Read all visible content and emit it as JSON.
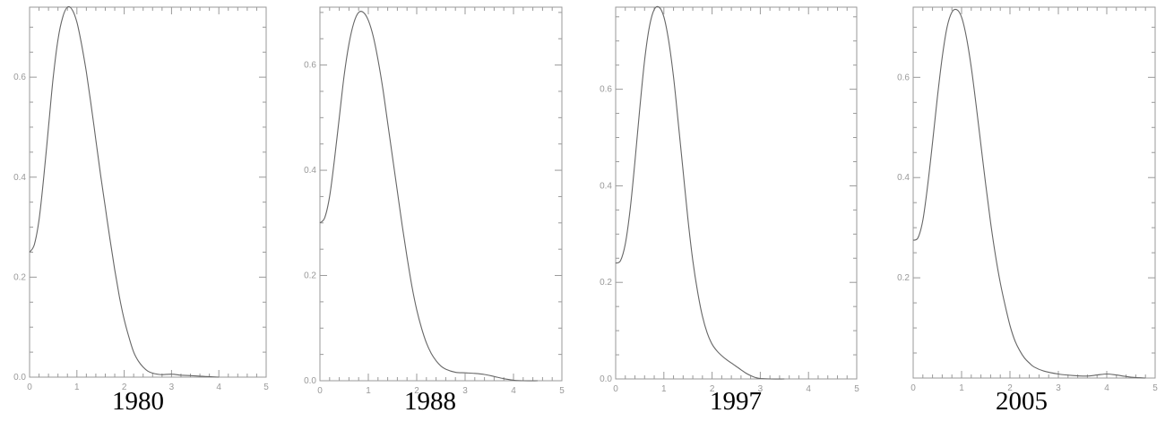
{
  "style": {
    "line_color": "#666666",
    "axis_color": "#999999",
    "tick_label_color": "#999999",
    "caption_color": "#000000"
  },
  "chart_data": [
    {
      "type": "line",
      "title": "1980",
      "xlim": [
        0,
        5
      ],
      "ylim": [
        0,
        0.74
      ],
      "xticks": [
        0,
        1,
        2,
        3,
        4,
        5
      ],
      "yticks": [
        0.0,
        0.2,
        0.4,
        0.6
      ],
      "ytick_labels": [
        "0.0",
        "0.2",
        "0.4",
        "0.6"
      ],
      "grid": false,
      "series": [
        {
          "x": [
            0,
            0.1,
            0.2,
            0.3,
            0.4,
            0.5,
            0.6,
            0.7,
            0.8,
            0.9,
            1.0,
            1.1,
            1.2,
            1.3,
            1.4,
            1.5,
            1.6,
            1.7,
            1.8,
            1.9,
            2.0,
            2.1,
            2.2,
            2.3,
            2.4,
            2.5,
            2.6,
            2.7,
            2.8,
            3.0,
            3.2,
            3.4,
            3.6,
            3.8,
            4.0
          ],
          "y": [
            0.25,
            0.265,
            0.315,
            0.4,
            0.5,
            0.6,
            0.675,
            0.72,
            0.74,
            0.735,
            0.71,
            0.665,
            0.61,
            0.545,
            0.475,
            0.405,
            0.34,
            0.275,
            0.215,
            0.16,
            0.115,
            0.08,
            0.05,
            0.032,
            0.02,
            0.012,
            0.008,
            0.006,
            0.005,
            0.006,
            0.004,
            0.003,
            0.002,
            0.001,
            0.0
          ]
        }
      ]
    },
    {
      "type": "line",
      "title": "1988",
      "xlim": [
        0,
        5
      ],
      "ylim": [
        0,
        0.71
      ],
      "xticks": [
        0,
        1,
        2,
        3,
        4,
        5
      ],
      "yticks": [
        0.0,
        0.2,
        0.4,
        0.6
      ],
      "ytick_labels": [
        "0.0",
        "0.2",
        "0.4",
        "0.6"
      ],
      "grid": false,
      "series": [
        {
          "x": [
            0,
            0.1,
            0.2,
            0.3,
            0.4,
            0.5,
            0.6,
            0.7,
            0.8,
            0.9,
            1.0,
            1.1,
            1.2,
            1.3,
            1.4,
            1.5,
            1.6,
            1.7,
            1.8,
            1.9,
            2.0,
            2.1,
            2.2,
            2.3,
            2.4,
            2.5,
            2.6,
            2.8,
            3.0,
            3.2,
            3.4,
            3.6,
            3.8,
            4.0,
            4.2,
            4.5
          ],
          "y": [
            0.3,
            0.31,
            0.35,
            0.42,
            0.5,
            0.58,
            0.64,
            0.68,
            0.7,
            0.7,
            0.685,
            0.655,
            0.61,
            0.555,
            0.49,
            0.425,
            0.36,
            0.295,
            0.235,
            0.18,
            0.135,
            0.1,
            0.072,
            0.052,
            0.038,
            0.028,
            0.022,
            0.016,
            0.015,
            0.014,
            0.012,
            0.008,
            0.004,
            0.001,
            0.0,
            0.0
          ]
        }
      ]
    },
    {
      "type": "line",
      "title": "1997",
      "xlim": [
        0,
        5
      ],
      "ylim": [
        0,
        0.77
      ],
      "xticks": [
        0,
        1,
        2,
        3,
        4,
        5
      ],
      "yticks": [
        0.0,
        0.2,
        0.4,
        0.6
      ],
      "ytick_labels": [
        "0.0",
        "0.2",
        "0.4",
        "0.6"
      ],
      "grid": false,
      "series": [
        {
          "x": [
            0,
            0.1,
            0.2,
            0.3,
            0.4,
            0.5,
            0.6,
            0.7,
            0.8,
            0.9,
            1.0,
            1.1,
            1.2,
            1.3,
            1.4,
            1.5,
            1.6,
            1.7,
            1.8,
            1.9,
            2.0,
            2.1,
            2.2,
            2.3,
            2.4,
            2.5,
            2.6,
            2.7,
            2.8,
            2.9,
            3.0,
            3.2,
            3.5
          ],
          "y": [
            0.24,
            0.245,
            0.28,
            0.35,
            0.45,
            0.56,
            0.66,
            0.73,
            0.765,
            0.77,
            0.75,
            0.7,
            0.625,
            0.53,
            0.43,
            0.33,
            0.245,
            0.18,
            0.13,
            0.095,
            0.072,
            0.058,
            0.048,
            0.04,
            0.033,
            0.026,
            0.019,
            0.012,
            0.007,
            0.003,
            0.001,
            0.0,
            0.0
          ]
        }
      ]
    },
    {
      "type": "line",
      "title": "2005",
      "xlim": [
        0,
        5
      ],
      "ylim": [
        0,
        0.74
      ],
      "xticks": [
        0,
        1,
        2,
        3,
        4,
        5
      ],
      "yticks": [
        0.2,
        0.4,
        0.6
      ],
      "ytick_labels": [
        "0.2",
        "0.4",
        "0.6"
      ],
      "grid": false,
      "series": [
        {
          "x": [
            0,
            0.1,
            0.2,
            0.3,
            0.4,
            0.5,
            0.6,
            0.7,
            0.8,
            0.9,
            1.0,
            1.1,
            1.2,
            1.3,
            1.4,
            1.5,
            1.6,
            1.7,
            1.8,
            1.9,
            2.0,
            2.1,
            2.2,
            2.3,
            2.4,
            2.5,
            2.7,
            3.0,
            3.3,
            3.6,
            3.8,
            4.0,
            4.2,
            4.4,
            4.6,
            4.8
          ],
          "y": [
            0.275,
            0.28,
            0.315,
            0.385,
            0.47,
            0.56,
            0.64,
            0.7,
            0.73,
            0.735,
            0.72,
            0.68,
            0.62,
            0.545,
            0.465,
            0.385,
            0.31,
            0.245,
            0.19,
            0.145,
            0.105,
            0.075,
            0.055,
            0.04,
            0.03,
            0.022,
            0.014,
            0.008,
            0.005,
            0.004,
            0.006,
            0.008,
            0.006,
            0.003,
            0.001,
            0.0
          ]
        }
      ]
    }
  ]
}
